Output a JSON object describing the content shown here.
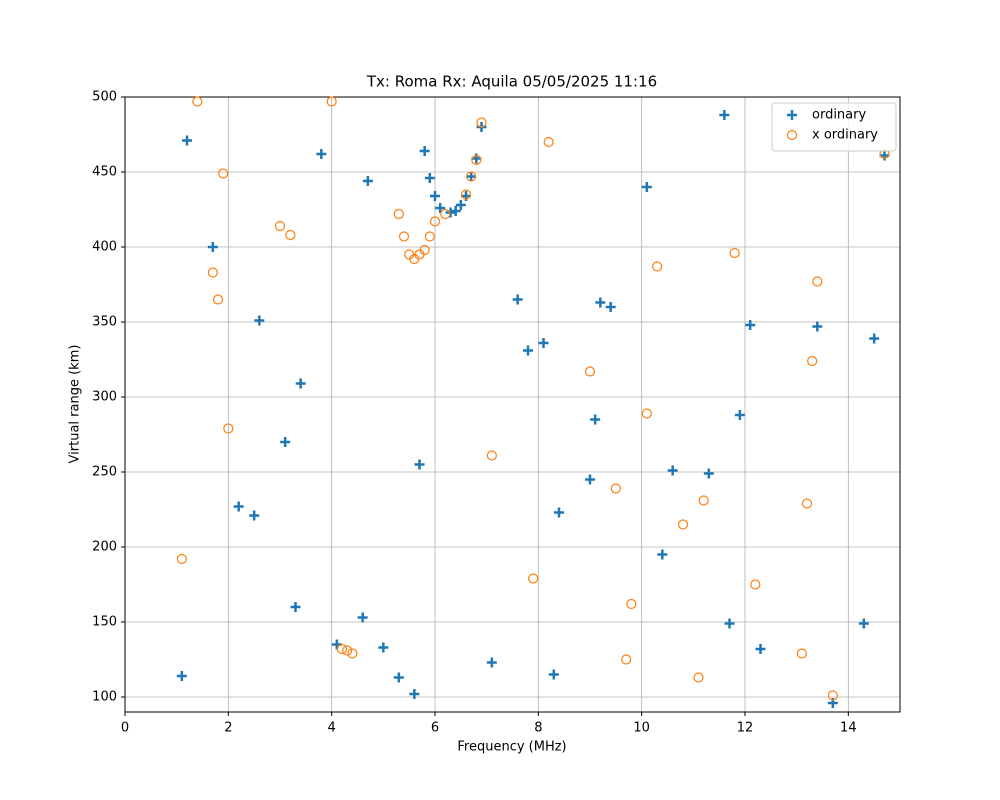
{
  "chart_data": {
    "type": "scatter",
    "title": "Tx: Roma Rx: Aquila 05/05/2025 11:16",
    "x_label": "Frequency (MHz)",
    "y_label": "Virtual range (km)",
    "xlim": [
      0,
      15
    ],
    "ylim": [
      90,
      500
    ],
    "xticks": [
      0,
      2,
      4,
      6,
      8,
      10,
      12,
      14
    ],
    "yticks": [
      100,
      150,
      200,
      250,
      300,
      350,
      400,
      450,
      500
    ],
    "grid": true,
    "legend": "upper right",
    "series": [
      {
        "name": "ordinary",
        "color": "#1f77b4",
        "marker": "plus",
        "x": [
          1.2,
          1.7,
          2.6,
          3.4,
          3.1,
          2.2,
          2.5,
          3.3,
          1.1,
          3.8,
          4.7,
          4.1,
          4.6,
          5.0,
          5.3,
          5.6,
          5.7,
          5.8,
          5.9,
          6.0,
          6.1,
          6.3,
          6.4,
          6.5,
          6.6,
          6.7,
          6.8,
          6.9,
          7.1,
          7.6,
          7.8,
          8.1,
          8.4,
          8.3,
          9.0,
          9.1,
          9.2,
          9.4,
          10.1,
          10.4,
          10.6,
          11.3,
          11.6,
          11.9,
          12.1,
          11.7,
          12.3,
          13.4,
          13.7,
          14.3,
          14.5,
          14.7
        ],
        "values": [
          471,
          400,
          351,
          309,
          270,
          227,
          221,
          160,
          114,
          462,
          444,
          135,
          153,
          133,
          113,
          102,
          255,
          464,
          446,
          434,
          426,
          423,
          424,
          428,
          434,
          447,
          459,
          480,
          123,
          365,
          331,
          336,
          223,
          115,
          245,
          285,
          363,
          360,
          440,
          195,
          251,
          249,
          488,
          288,
          348,
          149,
          132,
          347,
          96,
          149,
          339,
          461
        ]
      },
      {
        "name": "x ordinary",
        "color": "#ff7f0e",
        "marker": "circle",
        "x": [
          1.4,
          1.9,
          1.7,
          1.8,
          2.0,
          1.1,
          3.0,
          3.2,
          4.0,
          4.2,
          4.3,
          4.4,
          5.3,
          5.4,
          5.5,
          5.6,
          5.7,
          5.8,
          5.9,
          6.0,
          6.2,
          6.6,
          6.7,
          6.8,
          6.9,
          7.1,
          7.9,
          8.2,
          9.0,
          9.5,
          9.7,
          9.8,
          10.1,
          10.3,
          10.8,
          11.1,
          11.2,
          11.8,
          12.2,
          13.1,
          13.2,
          13.3,
          13.4,
          13.7,
          14.7
        ],
        "values": [
          497,
          449,
          383,
          365,
          279,
          192,
          414,
          408,
          497,
          132,
          131,
          129,
          422,
          407,
          395,
          392,
          395,
          398,
          407,
          417,
          422,
          435,
          447,
          458,
          483,
          261,
          179,
          470,
          317,
          239,
          125,
          162,
          289,
          387,
          215,
          113,
          231,
          396,
          175,
          129,
          229,
          324,
          377,
          101,
          462
        ]
      }
    ]
  }
}
